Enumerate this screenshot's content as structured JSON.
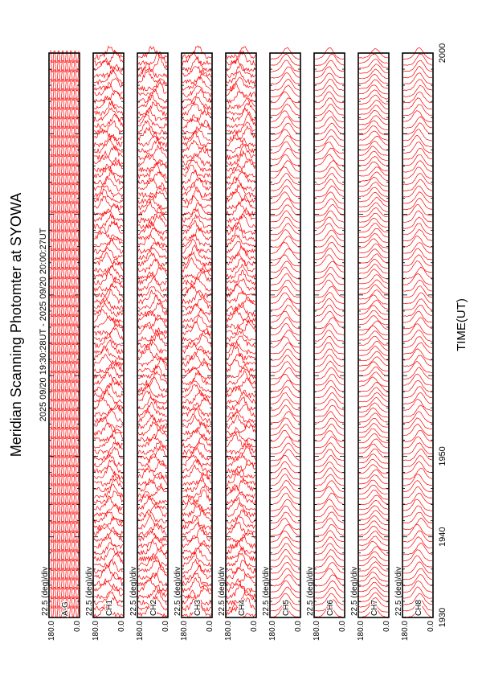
{
  "chart_data": {
    "type": "line",
    "title": "Meridian Scanning Photomter at SYOWA",
    "subtitle": "2025 09/20 19:30:28UT - 2025 09/20 20:00:27UT",
    "xlabel": "TIME(UT)",
    "xlim": [
      1930,
      2000
    ],
    "x_ticks": [
      "1930",
      "1940",
      "1950",
      "2000"
    ],
    "scale_label": "22.5 (deg)/div",
    "y_tick_top": "180.0",
    "y_tick_bottom": "0.0",
    "line_color": "#ff0000",
    "axis_color": "#000000",
    "orientation": "rotated-90-ccw",
    "panels": [
      {
        "label": "A-G",
        "y_range": [
          0,
          180
        ],
        "profile": "square-wave",
        "traces": 60
      },
      {
        "label": "CH1",
        "y_range": [
          0,
          180
        ],
        "profile": "noisy-peaked",
        "traces": 90
      },
      {
        "label": "CH2",
        "y_range": [
          0,
          180
        ],
        "profile": "noisy-peaked",
        "traces": 90
      },
      {
        "label": "CH3",
        "y_range": [
          0,
          180
        ],
        "profile": "noisy-peaked",
        "traces": 90
      },
      {
        "label": "CH4",
        "y_range": [
          0,
          180
        ],
        "profile": "noisy-peaked",
        "traces": 90
      },
      {
        "label": "CH5",
        "y_range": [
          0,
          180
        ],
        "profile": "smooth-peaked",
        "traces": 90
      },
      {
        "label": "CH6",
        "y_range": [
          0,
          180
        ],
        "profile": "smooth-peaked",
        "traces": 90
      },
      {
        "label": "CH7",
        "y_range": [
          0,
          180
        ],
        "profile": "smooth-peaked",
        "traces": 110
      },
      {
        "label": "CH8",
        "y_range": [
          0,
          180
        ],
        "profile": "smooth-peaked",
        "traces": 90
      }
    ]
  }
}
